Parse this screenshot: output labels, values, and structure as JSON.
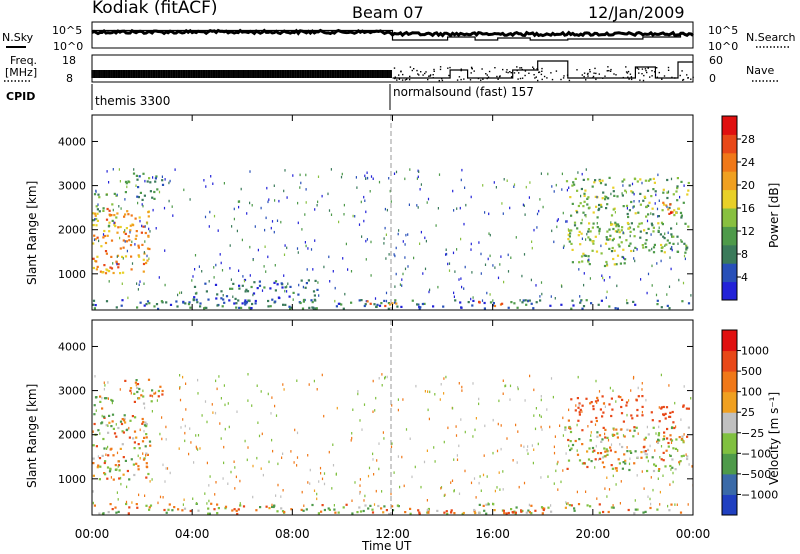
{
  "header": {
    "station": "Kodiak (fitACF)",
    "beam": "Beam 07",
    "date": "12/Jan/2009"
  },
  "panels": {
    "nsky_label": "N.Sky",
    "nsky_ticks": [
      "10^5",
      "10^0"
    ],
    "nsearch_label": "N.Search",
    "nsearch_ticks": [
      "10^5",
      "10^0"
    ],
    "freq_label_1": "Freq.",
    "freq_label_2": "[MHz]",
    "freq_ticks": [
      "18",
      "8"
    ],
    "nave_label": "Nave",
    "nave_ticks": [
      "60",
      "0"
    ],
    "cpid_label": "CPID",
    "cpid_1": "themis 3300",
    "cpid_2": "normalsound (fast) 157"
  },
  "axes": {
    "ylabel": "Slant Range [km]",
    "xlabel": "Time UT",
    "x_ticks": [
      "00:00",
      "04:00",
      "08:00",
      "12:00",
      "16:00",
      "20:00",
      "00:00"
    ],
    "y_ticks": [
      "1000",
      "2000",
      "3000",
      "4000"
    ]
  },
  "power_colorbar": {
    "label": "Power [dB]",
    "ticks": [
      "4",
      "8",
      "12",
      "16",
      "20",
      "24",
      "28"
    ]
  },
  "velocity_colorbar": {
    "label": "Velocity [m s⁻¹]",
    "ticks": [
      "1000",
      "500",
      "100",
      "25",
      "−25",
      "−100",
      "−500",
      "−1000"
    ]
  },
  "chart_data": [
    {
      "type": "heatmap",
      "name": "power",
      "x_range_hours": [
        0,
        24
      ],
      "y_range_km": [
        180,
        4600
      ],
      "z_range_db": [
        0,
        32
      ],
      "colors": [
        "#2222d8",
        "#2850b8",
        "#3a7a5a",
        "#4e9a4a",
        "#88c040",
        "#e8d028",
        "#f0a020",
        "#f07818",
        "#e84818",
        "#e01010"
      ],
      "regions": [
        {
          "t0": 0.0,
          "t1": 2.3,
          "r0": 1000,
          "r1": 2500,
          "db": 22
        },
        {
          "t0": 0.0,
          "t1": 1.0,
          "r0": 2100,
          "r1": 2900,
          "db": 13
        },
        {
          "t0": 1.2,
          "t1": 2.8,
          "r0": 2700,
          "r1": 3300,
          "db": 10
        },
        {
          "t0": 0.0,
          "t1": 24.0,
          "r0": 230,
          "r1": 430,
          "db": 7
        },
        {
          "t0": 10.8,
          "t1": 12.2,
          "r0": 280,
          "r1": 420,
          "db": 24
        },
        {
          "t0": 15.4,
          "t1": 16.4,
          "r0": 260,
          "r1": 420,
          "db": 26
        },
        {
          "t0": 18.8,
          "t1": 21.5,
          "r0": 1200,
          "r1": 2200,
          "db": 14
        },
        {
          "t0": 20.5,
          "t1": 23.8,
          "r0": 1500,
          "r1": 2200,
          "db": 12
        },
        {
          "t0": 18.8,
          "t1": 23.8,
          "r0": 2300,
          "r1": 3200,
          "db": 13
        },
        {
          "t0": 22.6,
          "t1": 23.5,
          "r0": 2350,
          "r1": 2650,
          "db": 26
        },
        {
          "t0": 4.0,
          "t1": 9.0,
          "r0": 350,
          "r1": 900,
          "db": 6
        }
      ]
    },
    {
      "type": "heatmap",
      "name": "velocity",
      "x_range_hours": [
        0,
        24
      ],
      "y_range_km": [
        180,
        4600
      ],
      "v_range_ms": [
        -1000,
        1000
      ],
      "colors": [
        "#e01010",
        "#e84818",
        "#f07818",
        "#f0a020",
        "#c0c0c0",
        "#80c040",
        "#4e9a4a",
        "#3a6aa8",
        "#2040c0"
      ],
      "regions": [
        {
          "t0": 0.0,
          "t1": 2.3,
          "r0": 1000,
          "r1": 2500,
          "v": 0
        },
        {
          "t0": 0.0,
          "t1": 0.8,
          "r0": 2200,
          "r1": 2900,
          "v": 60
        },
        {
          "t0": 1.2,
          "t1": 2.8,
          "r0": 2700,
          "r1": 3300,
          "v": 0
        },
        {
          "t0": 0.0,
          "t1": 24.0,
          "r0": 220,
          "r1": 460,
          "v": 10
        },
        {
          "t0": 11.5,
          "t1": 18.0,
          "r0": 230,
          "r1": 330,
          "v": -150
        },
        {
          "t0": 18.8,
          "t1": 23.8,
          "r0": 1200,
          "r1": 2200,
          "v": 0
        },
        {
          "t0": 19.0,
          "t1": 22.0,
          "r0": 2300,
          "r1": 2900,
          "v": -200
        },
        {
          "t0": 22.3,
          "t1": 23.8,
          "r0": 2300,
          "r1": 2700,
          "v": -350
        }
      ]
    }
  ]
}
